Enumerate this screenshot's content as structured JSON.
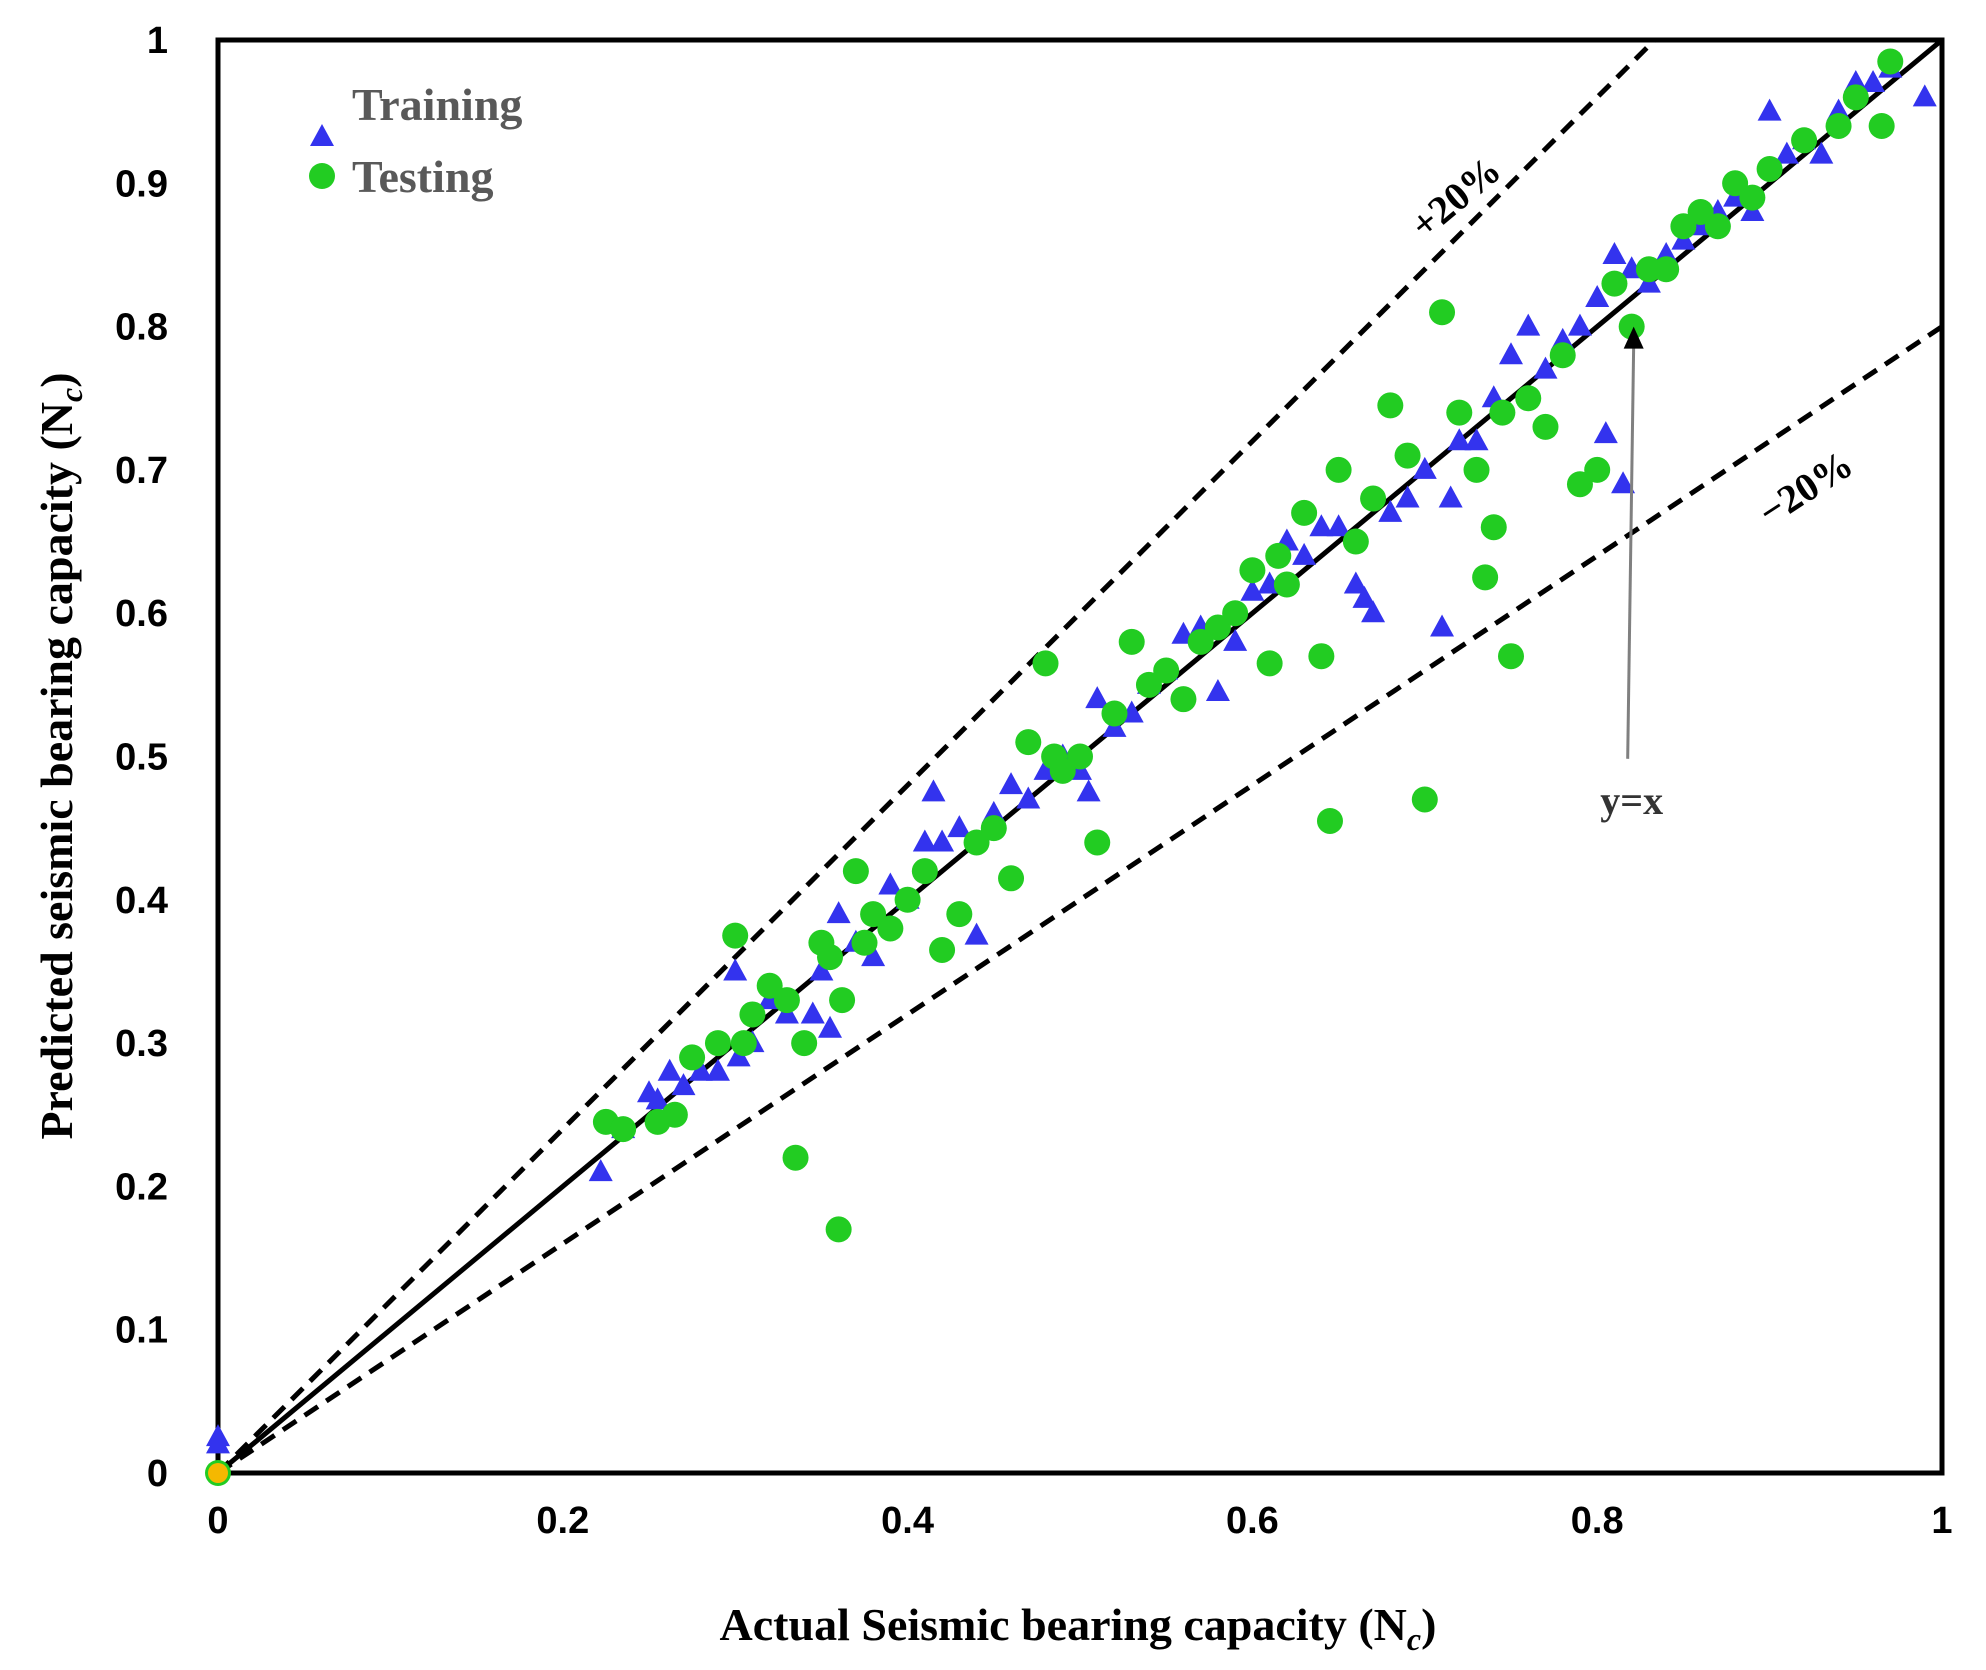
{
  "chart_data": {
    "type": "scatter",
    "title": "",
    "xlabel": "Actual Seismic bearing capacity (N",
    "xlabel_sub": "c",
    "xlabel_end": ")",
    "ylabel": "Predicted seismic bearing capacity (N",
    "ylabel_sub": "c",
    "ylabel_end": ")",
    "xlim": [
      0,
      1
    ],
    "ylim": [
      0,
      1
    ],
    "x_ticks": [
      0,
      0.2,
      0.4,
      0.6,
      0.8,
      1
    ],
    "x_tick_labels": [
      "0",
      "0.2",
      "0.4",
      "0.6",
      "0.8",
      "1"
    ],
    "y_ticks": [
      0,
      0.1,
      0.2,
      0.3,
      0.4,
      0.5,
      0.6,
      0.7,
      0.8,
      0.9,
      1
    ],
    "y_tick_labels": [
      "0",
      "0.1",
      "0.2",
      "0.3",
      "0.4",
      "0.5",
      "0.6",
      "0.7",
      "0.8",
      "0.9",
      "1"
    ],
    "legend": {
      "position": "top-left",
      "entries": [
        "Training",
        "Testing"
      ]
    },
    "reference_lines": [
      {
        "name": "y=x",
        "slope": 1.0,
        "style": "solid",
        "color": "#000000"
      },
      {
        "name": "+20%",
        "slope": 1.2,
        "style": "dashed",
        "color": "#000000"
      },
      {
        "name": "−20%",
        "slope": 0.8,
        "style": "dashed",
        "color": "#000000"
      }
    ],
    "annotations": [
      {
        "text": "+20%",
        "anchor_x": 0.7,
        "anchor_y": 0.86
      },
      {
        "text": "−20%",
        "anchor_x": 0.9,
        "anchor_y": 0.66
      },
      {
        "text": "y=x",
        "anchor_x": 0.82,
        "anchor_y": 0.46,
        "arrow_to": [
          0.82,
          0.8
        ]
      }
    ],
    "series": [
      {
        "name": "Training",
        "marker": "triangle",
        "color": "#3333ee",
        "x": [
          0.0,
          0.0,
          0.222,
          0.235,
          0.25,
          0.255,
          0.262,
          0.27,
          0.28,
          0.29,
          0.3,
          0.302,
          0.31,
          0.32,
          0.33,
          0.345,
          0.35,
          0.355,
          0.36,
          0.37,
          0.38,
          0.39,
          0.4,
          0.41,
          0.415,
          0.42,
          0.43,
          0.44,
          0.45,
          0.46,
          0.47,
          0.48,
          0.49,
          0.5,
          0.505,
          0.51,
          0.52,
          0.53,
          0.54,
          0.55,
          0.56,
          0.57,
          0.58,
          0.59,
          0.6,
          0.61,
          0.62,
          0.63,
          0.64,
          0.65,
          0.66,
          0.665,
          0.67,
          0.68,
          0.69,
          0.7,
          0.71,
          0.715,
          0.72,
          0.73,
          0.74,
          0.75,
          0.76,
          0.77,
          0.78,
          0.79,
          0.8,
          0.805,
          0.81,
          0.815,
          0.82,
          0.83,
          0.84,
          0.85,
          0.86,
          0.87,
          0.88,
          0.89,
          0.9,
          0.91,
          0.92,
          0.93,
          0.94,
          0.95,
          0.96,
          0.97,
          0.99
        ],
        "y": [
          0.025,
          0.02,
          0.21,
          0.24,
          0.265,
          0.26,
          0.28,
          0.27,
          0.28,
          0.28,
          0.35,
          0.29,
          0.3,
          0.33,
          0.32,
          0.32,
          0.35,
          0.31,
          0.39,
          0.37,
          0.36,
          0.41,
          0.4,
          0.44,
          0.475,
          0.44,
          0.45,
          0.375,
          0.46,
          0.48,
          0.47,
          0.49,
          0.5,
          0.49,
          0.475,
          0.54,
          0.52,
          0.53,
          0.55,
          0.56,
          0.585,
          0.59,
          0.545,
          0.58,
          0.615,
          0.62,
          0.65,
          0.64,
          0.66,
          0.66,
          0.62,
          0.61,
          0.6,
          0.67,
          0.68,
          0.7,
          0.59,
          0.68,
          0.72,
          0.72,
          0.75,
          0.78,
          0.8,
          0.77,
          0.79,
          0.8,
          0.82,
          0.725,
          0.85,
          0.69,
          0.84,
          0.83,
          0.85,
          0.86,
          0.87,
          0.88,
          0.89,
          0.88,
          0.95,
          0.92,
          0.93,
          0.92,
          0.95,
          0.97,
          0.97,
          0.98,
          0.96
        ]
      },
      {
        "name": "Testing",
        "marker": "circle",
        "color": "#22cc22",
        "x": [
          0.225,
          0.235,
          0.255,
          0.265,
          0.275,
          0.29,
          0.3,
          0.305,
          0.31,
          0.32,
          0.33,
          0.335,
          0.34,
          0.35,
          0.355,
          0.36,
          0.362,
          0.37,
          0.375,
          0.38,
          0.39,
          0.4,
          0.41,
          0.42,
          0.43,
          0.44,
          0.45,
          0.46,
          0.47,
          0.48,
          0.485,
          0.49,
          0.5,
          0.51,
          0.52,
          0.53,
          0.54,
          0.55,
          0.56,
          0.57,
          0.58,
          0.59,
          0.6,
          0.61,
          0.615,
          0.62,
          0.63,
          0.64,
          0.645,
          0.65,
          0.66,
          0.67,
          0.68,
          0.69,
          0.7,
          0.71,
          0.72,
          0.73,
          0.735,
          0.74,
          0.745,
          0.75,
          0.76,
          0.77,
          0.78,
          0.79,
          0.8,
          0.81,
          0.82,
          0.83,
          0.84,
          0.85,
          0.86,
          0.87,
          0.88,
          0.89,
          0.9,
          0.92,
          0.94,
          0.95,
          0.965,
          0.97,
          0.0
        ],
        "y": [
          0.245,
          0.24,
          0.245,
          0.25,
          0.29,
          0.3,
          0.375,
          0.3,
          0.32,
          0.34,
          0.33,
          0.22,
          0.3,
          0.37,
          0.36,
          0.17,
          0.33,
          0.42,
          0.37,
          0.39,
          0.38,
          0.4,
          0.42,
          0.365,
          0.39,
          0.44,
          0.45,
          0.415,
          0.51,
          0.565,
          0.5,
          0.49,
          0.5,
          0.44,
          0.53,
          0.58,
          0.55,
          0.56,
          0.54,
          0.58,
          0.59,
          0.6,
          0.63,
          0.565,
          0.64,
          0.62,
          0.67,
          0.57,
          0.455,
          0.7,
          0.65,
          0.68,
          0.745,
          0.71,
          0.47,
          0.81,
          0.74,
          0.7,
          0.625,
          0.66,
          0.74,
          0.57,
          0.75,
          0.73,
          0.78,
          0.69,
          0.7,
          0.83,
          0.8,
          0.84,
          0.84,
          0.87,
          0.88,
          0.87,
          0.9,
          0.89,
          0.91,
          0.93,
          0.94,
          0.96,
          0.94,
          0.985,
          0.0
        ]
      }
    ],
    "origin_marker": {
      "x": 0,
      "y": 0,
      "color": "#f5b800"
    }
  }
}
